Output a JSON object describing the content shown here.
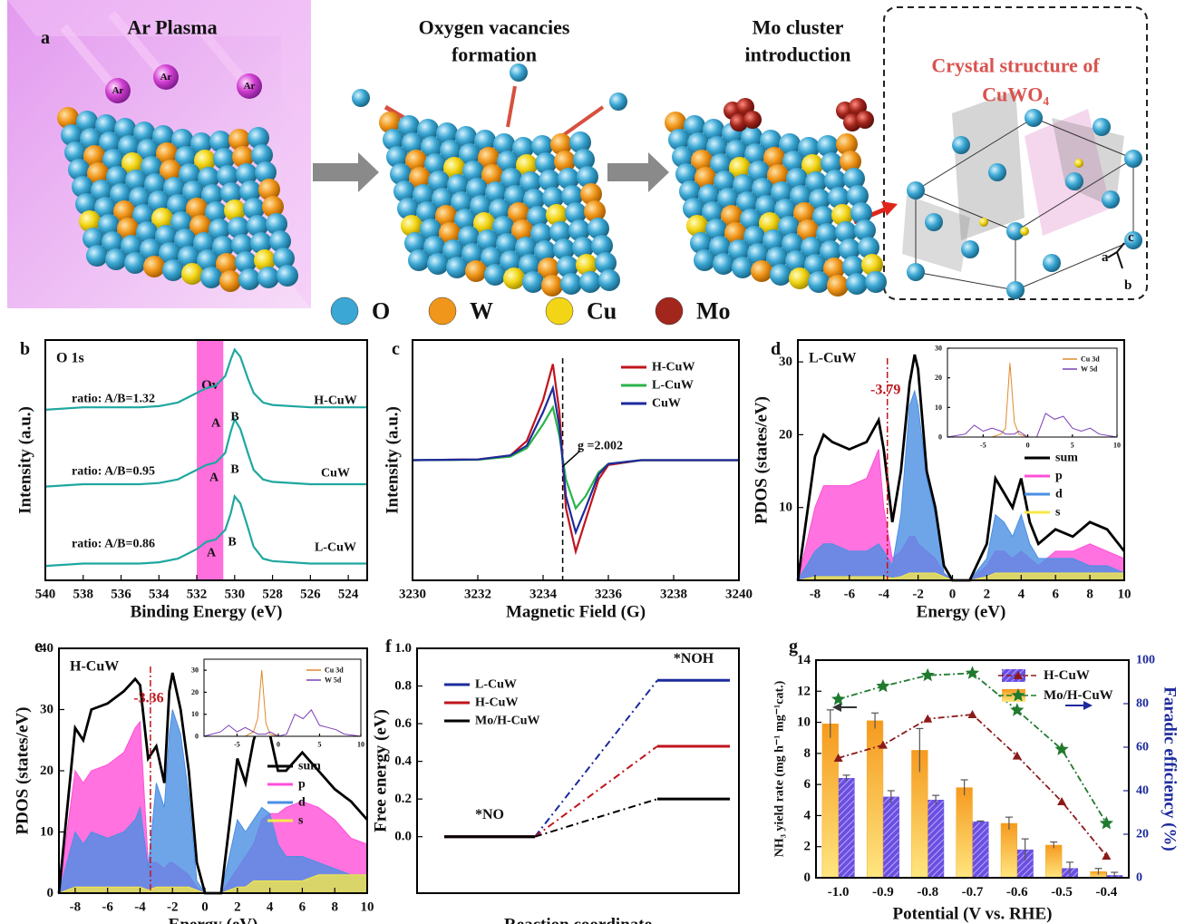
{
  "panel_a": {
    "label": "a",
    "headings": [
      "Ar Plasma",
      "Oxygen vacancies",
      "formation",
      "Mo cluster",
      "introduction"
    ],
    "crystal_heading": [
      "Crystal structure of",
      "CuWO₄"
    ],
    "ion_labels": [
      "Ar",
      "Ar",
      "Ar"
    ],
    "axis_labels": [
      "c",
      "a",
      "b"
    ],
    "legend": [
      {
        "label": "O",
        "color": "#3aa7d4"
      },
      {
        "label": "W",
        "color": "#f0961a"
      },
      {
        "label": "Cu",
        "color": "#f2d515"
      },
      {
        "label": "Mo",
        "color": "#a3261c"
      }
    ]
  },
  "chart_data": [
    {
      "panel": "b",
      "type": "line",
      "title": "O 1s",
      "xlabel": "Binding Energy (eV)",
      "ylabel": "Intensity (a.u.)",
      "xlim": [
        540,
        523
      ],
      "xticks": [
        540,
        538,
        536,
        534,
        532,
        530,
        528,
        526,
        524
      ],
      "ylim": [
        0,
        100
      ],
      "band": [
        532,
        530.6
      ],
      "band_label": "Ov",
      "x": [
        540,
        538,
        536,
        535,
        534,
        533,
        532.5,
        532,
        531.5,
        531,
        530.5,
        530.2,
        530,
        529.7,
        529.3,
        529,
        528.5,
        528,
        526,
        524,
        523
      ],
      "series": [
        {
          "name": "H-CuW",
          "color": "#1fa7a0",
          "values": [
            71,
            72,
            72,
            72,
            72.5,
            74,
            76,
            78,
            80,
            81,
            85,
            92,
            96,
            93,
            84,
            78,
            74,
            73,
            72,
            72,
            72
          ]
        },
        {
          "name": "CuW",
          "color": "#1fa7a0",
          "values": [
            39,
            40,
            40,
            40,
            40.5,
            42,
            44,
            46,
            48,
            49,
            53,
            62,
            67,
            63,
            53,
            46,
            42,
            41,
            40,
            40,
            40
          ]
        },
        {
          "name": "L-CuW",
          "color": "#1fa7a0",
          "values": [
            6,
            7,
            7,
            7,
            7.5,
            9,
            11,
            13,
            16,
            17,
            21,
            28,
            35,
            32,
            22,
            14,
            9,
            8,
            7,
            7,
            7
          ]
        }
      ],
      "annotations": [
        "ratio: A/B=1.32",
        "ratio: A/B=0.95",
        "ratio: A/B=0.86",
        "A",
        "B",
        "A",
        "B",
        "A",
        "B"
      ]
    },
    {
      "panel": "c",
      "type": "line",
      "xlabel": "Magnetic Field (G)",
      "ylabel": "Intensity (a.u.)",
      "xlim": [
        3230,
        3240
      ],
      "xticks": [
        3230,
        3232,
        3234,
        3236,
        3238,
        3240
      ],
      "ylim": [
        -50,
        50
      ],
      "vline": 3234.6,
      "vline_printed": false,
      "legend": "upper right",
      "x": [
        3230,
        3232,
        3233,
        3233.5,
        3234,
        3234.3,
        3234.5,
        3234.7,
        3235,
        3235.3,
        3235.7,
        3236,
        3237,
        3238,
        3240
      ],
      "series": [
        {
          "name": "H-CuW",
          "color": "#c0141c",
          "values": [
            0,
            0.3,
            2,
            8,
            25,
            40,
            20,
            -20,
            -38,
            -25,
            -8,
            -2,
            0,
            0,
            0
          ]
        },
        {
          "name": "L-CuW",
          "color": "#2bb34a",
          "values": [
            0,
            0.2,
            1.5,
            5,
            15,
            22,
            10,
            -8,
            -20,
            -15,
            -5,
            -1.5,
            0,
            0,
            0
          ]
        },
        {
          "name": "CuW",
          "color": "#1c2a9c",
          "values": [
            0,
            0.3,
            2,
            6,
            20,
            30,
            14,
            -15,
            -30,
            -20,
            -6,
            -1.5,
            0,
            0,
            0
          ]
        }
      ],
      "annotations": [
        "g =2.002"
      ]
    },
    {
      "panel": "d",
      "type": "area",
      "title": "L-CuW",
      "xlabel": "Energy (eV)",
      "ylabel": "PDOS (states/eV)",
      "xlim": [
        -9,
        10
      ],
      "xticks": [
        -8,
        -6,
        -4,
        -2,
        0,
        2,
        4,
        6,
        8,
        10
      ],
      "ylim": [
        0,
        33
      ],
      "yticks": [
        10,
        20,
        30
      ],
      "vline": -3.79,
      "vline_printed": true,
      "legend": "right",
      "x": [
        -9,
        -8,
        -7.5,
        -7,
        -6,
        -5,
        -4.3,
        -4,
        -3.5,
        -3,
        -2.5,
        -2.2,
        -2,
        -1.5,
        -1,
        -0.5,
        0,
        1,
        2,
        2.5,
        3,
        3.5,
        4,
        4.5,
        5,
        6,
        7,
        8,
        9,
        10
      ],
      "series": [
        {
          "name": "sum",
          "color": "#000000",
          "fill": false,
          "values": [
            0,
            17,
            20,
            19,
            18,
            19,
            22,
            18,
            8,
            15,
            27,
            31,
            29,
            15,
            10,
            2,
            0,
            0,
            5,
            14,
            12,
            10,
            14,
            8,
            5,
            7,
            6,
            8,
            7,
            4
          ]
        },
        {
          "name": "p",
          "color": "#ff4fd8",
          "fill": true,
          "values": [
            0,
            10,
            13,
            13,
            13,
            14,
            18,
            10,
            3,
            4,
            6,
            6,
            5,
            4,
            3,
            1,
            0,
            0,
            2,
            4,
            4,
            3,
            4,
            3,
            2,
            4,
            4,
            5,
            4,
            3
          ]
        },
        {
          "name": "d",
          "color": "#4a8fe3",
          "fill": true,
          "values": [
            0,
            4,
            5,
            5,
            4,
            4,
            5,
            4,
            2,
            9,
            24,
            26,
            24,
            14,
            9,
            1,
            0,
            0,
            3,
            9,
            8,
            6,
            9,
            5,
            3,
            3,
            3,
            2,
            2,
            1
          ]
        },
        {
          "name": "s",
          "color": "#f5e94a",
          "fill": true,
          "values": [
            0,
            0.5,
            0.5,
            0.5,
            0.5,
            0.5,
            0.5,
            0.5,
            0.3,
            0.5,
            1,
            1,
            1,
            1,
            1,
            0.5,
            0,
            0,
            0.5,
            1,
            1,
            1,
            1,
            1,
            1,
            1,
            1,
            1,
            1,
            1
          ]
        }
      ]
    },
    {
      "type": "line",
      "xlim": [
        -9,
        10
      ],
      "xticks": [
        -5,
        0,
        5,
        10
      ],
      "ylim": [
        0,
        30
      ],
      "yticks": [
        0,
        10,
        20,
        30
      ],
      "legend": "upper right",
      "x": [
        -9,
        -7,
        -6,
        -5,
        -4,
        -3,
        -2.5,
        -2,
        -1.5,
        -1,
        0,
        1,
        2,
        3,
        4,
        5,
        6,
        7,
        8,
        10
      ],
      "series": [
        {
          "name": "Cu 3d",
          "color": "#e08a2c",
          "values": [
            0,
            0,
            0,
            0,
            0,
            1,
            3,
            25,
            5,
            1,
            0,
            0,
            0,
            0,
            0,
            0,
            0,
            0,
            0,
            0
          ]
        },
        {
          "name": "W 5d",
          "color": "#7b3fb8",
          "values": [
            0,
            1,
            4,
            2,
            3,
            2,
            1,
            1,
            1,
            2,
            0,
            0,
            8,
            6,
            7,
            3,
            2,
            3,
            1,
            0
          ]
        }
      ]
    },
    {
      "panel": "e",
      "type": "area",
      "title": "H-CuW",
      "xlabel": "Energy (eV)",
      "ylabel": "PDOS (states/eV)",
      "xlim": [
        -9,
        10
      ],
      "xticks": [
        -8,
        -6,
        -4,
        -2,
        0,
        2,
        4,
        6,
        8,
        10
      ],
      "ylim": [
        0,
        40
      ],
      "yticks": [
        0,
        10,
        20,
        30,
        40
      ],
      "vline": -3.36,
      "vline_printed": true,
      "legend": "right",
      "x": [
        -9,
        -8,
        -7.5,
        -7,
        -6,
        -5,
        -4.3,
        -4,
        -3.5,
        -3,
        -2.5,
        -2.2,
        -2,
        -1.5,
        -1,
        -0.5,
        0,
        1,
        2,
        2.5,
        3,
        3.5,
        4,
        4.5,
        5,
        6,
        7,
        8,
        9,
        10
      ],
      "series": [
        {
          "name": "sum",
          "color": "#000000",
          "fill": false,
          "values": [
            0,
            27,
            25,
            30,
            31,
            33,
            35,
            34,
            22,
            24,
            18,
            33,
            36,
            30,
            20,
            5,
            0,
            0,
            22,
            18,
            25,
            29,
            26,
            20,
            20,
            23,
            20,
            17,
            15,
            12
          ]
        },
        {
          "name": "p",
          "color": "#ff4fd8",
          "fill": true,
          "values": [
            0,
            20,
            18,
            20,
            21,
            23,
            27,
            28,
            5,
            5,
            4,
            5,
            5,
            4,
            3,
            1,
            0,
            0,
            4,
            6,
            8,
            12,
            13,
            13,
            14,
            15,
            14,
            12,
            9,
            8
          ]
        },
        {
          "name": "d",
          "color": "#4a8fe3",
          "fill": true,
          "values": [
            0,
            10,
            8,
            10,
            9,
            10,
            12,
            14,
            4,
            18,
            14,
            26,
            30,
            26,
            16,
            2,
            0,
            0,
            12,
            10,
            12,
            14,
            13,
            8,
            6,
            6,
            5,
            4,
            3,
            3
          ]
        },
        {
          "name": "s",
          "color": "#f5e94a",
          "fill": true,
          "values": [
            0,
            1,
            1,
            1,
            1,
            1,
            1,
            1,
            0.5,
            1,
            1,
            1,
            1,
            1,
            1,
            0.5,
            0,
            0,
            1,
            1,
            2,
            2,
            2,
            2,
            2,
            2,
            3,
            3,
            3,
            3
          ]
        }
      ]
    },
    {
      "type": "line",
      "xlim": [
        -9,
        10
      ],
      "xticks": [
        -5,
        0,
        5,
        10
      ],
      "ylim": [
        0,
        35
      ],
      "yticks": [
        0,
        10,
        20,
        30
      ],
      "legend": "upper right",
      "x": [
        -9,
        -7,
        -6,
        -5,
        -4,
        -3,
        -2.5,
        -2,
        -1.5,
        -1,
        0,
        1,
        2,
        3,
        4,
        5,
        6,
        7,
        8,
        10
      ],
      "series": [
        {
          "name": "Cu 3d",
          "color": "#e08a2c",
          "values": [
            0,
            0,
            0,
            0,
            0,
            2,
            8,
            30,
            6,
            1,
            0,
            0,
            0,
            0,
            0,
            0,
            0,
            0,
            0,
            0
          ]
        },
        {
          "name": "W 5d",
          "color": "#7b3fb8",
          "values": [
            0,
            2,
            5,
            2,
            4,
            2,
            1,
            1,
            1,
            2,
            0,
            1,
            10,
            8,
            12,
            5,
            4,
            3,
            1,
            0
          ]
        }
      ]
    },
    {
      "panel": "f",
      "type": "step",
      "xlabel": "Reaction coordinate",
      "ylabel": "Free energy (eV)",
      "categories": [
        "*NO",
        "*NOH"
      ],
      "ylim": [
        -0.3,
        1.0
      ],
      "yticks": [
        {
          "value": 0,
          "label": "0.0"
        },
        {
          "value": 0.2,
          "label": "0.2"
        },
        {
          "value": 0.4,
          "label": "0.4"
        },
        {
          "value": 0.6,
          "label": "0.6"
        },
        {
          "value": 0.8,
          "label": "0.8"
        },
        {
          "value": 1,
          "label": "1.0"
        }
      ],
      "legend": "upper left",
      "series": [
        {
          "name": "L-CuW",
          "color": "#1c2a9c",
          "values": [
            0,
            0.83
          ]
        },
        {
          "name": "H-CuW",
          "color": "#c0141c",
          "values": [
            0,
            0.48
          ]
        },
        {
          "name": "Mo/H-CuW",
          "color": "#000000",
          "values": [
            0,
            0.2
          ]
        }
      ]
    },
    {
      "panel": "g",
      "type": "bar_line",
      "xlabel": "Potential (V vs. RHE)",
      "ylabel": "NH₃ yield rate (mg h⁻¹ mg⁻¹cat.)",
      "y2label": "Faradic efficiency (%)",
      "categories": [
        "-1.0",
        "-0.9",
        "-0.8",
        "-0.7",
        "-0.6",
        "-0.5",
        "-0.4"
      ],
      "ylim": [
        0,
        14
      ],
      "yticks": [
        0,
        2,
        4,
        6,
        8,
        10,
        12,
        14
      ],
      "y2lim": [
        0,
        100
      ],
      "y2ticks": [
        0,
        20,
        40,
        60,
        80,
        100
      ],
      "series": [
        {
          "name": "H-CuW",
          "color": "#6a4fe0",
          "values": [
            6.4,
            5.2,
            5.0,
            3.6,
            1.8,
            0.6,
            0.15
          ],
          "errors": [
            0.2,
            0.4,
            0.3,
            0.05,
            0.7,
            0.4,
            0.2
          ]
        },
        {
          "name": "Mo/H-CuW",
          "color": "#f5a623",
          "values": [
            9.9,
            10.1,
            8.2,
            5.8,
            3.5,
            2.1,
            0.4
          ],
          "errors": [
            0.9,
            0.5,
            1.4,
            0.5,
            0.4,
            0.2,
            0.2
          ]
        }
      ],
      "line_series": [
        {
          "color": "#8b1a1a",
          "marker": "triangle",
          "axis": "y2",
          "values": [
            55,
            61,
            73,
            75,
            56,
            35,
            10
          ]
        },
        {
          "color": "#1f7a2e",
          "marker": "star",
          "axis": "y2",
          "values": [
            82,
            88,
            93,
            94,
            77,
            59,
            25
          ]
        }
      ]
    }
  ]
}
